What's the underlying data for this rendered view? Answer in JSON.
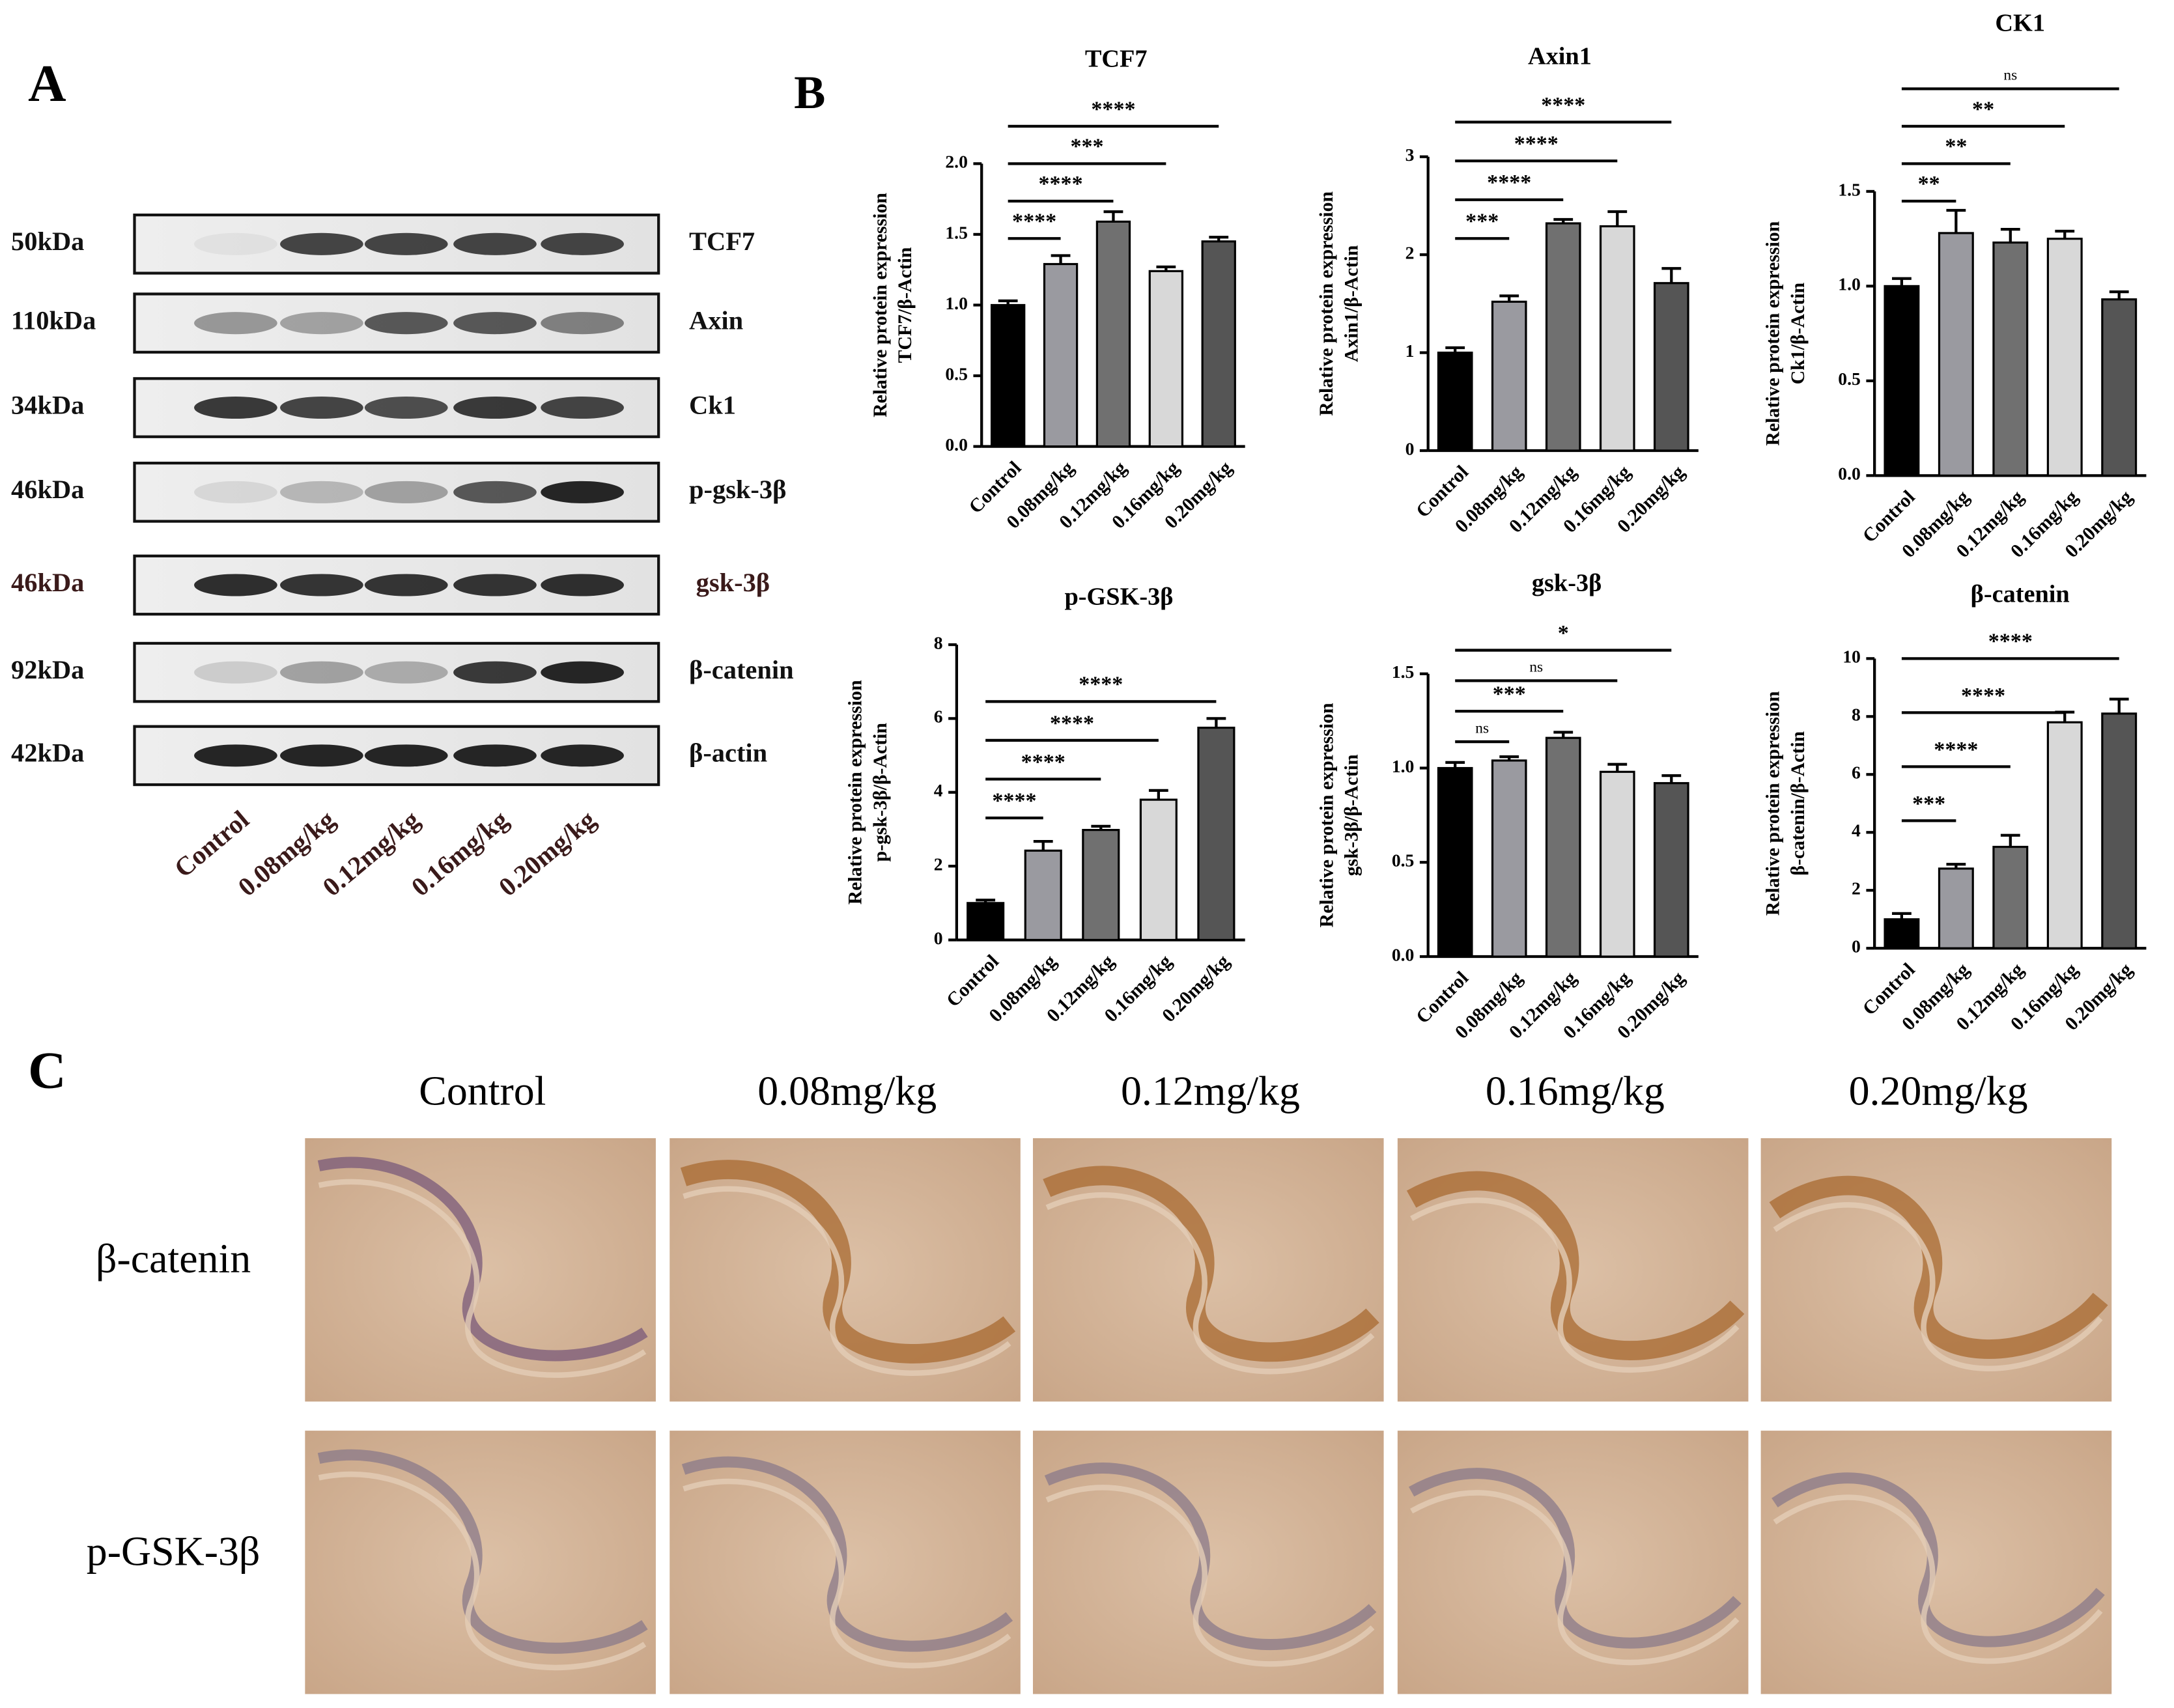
{
  "panel_labels": [
    "A",
    "B",
    "C"
  ],
  "blot": {
    "markers": [
      "50kDa",
      "110kDa",
      "34kDa",
      "46kDa",
      "46kDa",
      "92kDa",
      "42kDa"
    ],
    "proteins": [
      "TCF7",
      "Axin",
      "Ck1",
      "p-gsk-3β",
      "gsk-3β",
      "β-catenin",
      "β-actin"
    ],
    "groups": [
      "Control",
      "0.08mg/kg",
      "0.12mg/kg",
      "0.16mg/kg",
      "0.20mg/kg"
    ]
  },
  "chart_data": [
    {
      "type": "bar",
      "title": "TCF7",
      "ylabel": [
        "Relative protein expression",
        "TCF7/β-Actin"
      ],
      "categories": [
        "Control",
        "0.08mg/kg",
        "0.12mg/kg",
        "0.16mg/kg",
        "0.20mg/kg"
      ],
      "values": [
        1.0,
        1.29,
        1.59,
        1.24,
        1.45
      ],
      "errors": [
        0.03,
        0.06,
        0.07,
        0.03,
        0.03
      ],
      "colors": [
        "#000000",
        "#9a9aa0",
        "#707070",
        "#d8d8d8",
        "#555555"
      ],
      "ylim": [
        0,
        2
      ],
      "yticks": [
        {
          "value": 0,
          "label": "0.0"
        },
        0.5,
        {
          "value": 1,
          "label": "1.0"
        },
        1.5,
        {
          "value": 2,
          "label": "2.0"
        }
      ],
      "comparisons": [
        {
          "groups": [
            "Control",
            "0.08mg/kg"
          ],
          "label": "****"
        },
        {
          "groups": [
            "Control",
            "0.12mg/kg"
          ],
          "label": "****"
        },
        {
          "groups": [
            "Control",
            "0.16mg/kg"
          ],
          "label": "***"
        },
        {
          "groups": [
            "Control",
            "0.20mg/kg"
          ],
          "label": "****"
        }
      ]
    },
    {
      "type": "bar",
      "title": "Axin1",
      "ylabel": [
        "Relative protein expression",
        "Axin1/β-Actin"
      ],
      "categories": [
        "Control",
        "0.08mg/kg",
        "0.12mg/kg",
        "0.16mg/kg",
        "0.20mg/kg"
      ],
      "values": [
        1.0,
        1.52,
        2.32,
        2.29,
        1.71
      ],
      "errors": [
        0.05,
        0.06,
        0.04,
        0.15,
        0.15
      ],
      "colors": [
        "#000000",
        "#9a9aa0",
        "#707070",
        "#d8d8d8",
        "#555555"
      ],
      "ylim": [
        0,
        3
      ],
      "yticks": [
        0,
        1,
        2,
        3
      ],
      "comparisons": [
        {
          "groups": [
            "Control",
            "0.08mg/kg"
          ],
          "label": "***"
        },
        {
          "groups": [
            "Control",
            "0.12mg/kg"
          ],
          "label": "****"
        },
        {
          "groups": [
            "Control",
            "0.16mg/kg"
          ],
          "label": "****"
        },
        {
          "groups": [
            "Control",
            "0.20mg/kg"
          ],
          "label": "****"
        }
      ]
    },
    {
      "type": "bar",
      "title": "CK1",
      "ylabel": [
        "Relative protein expression",
        "Ck1/β-Actin"
      ],
      "categories": [
        "Control",
        "0.08mg/kg",
        "0.12mg/kg",
        "0.16mg/kg",
        "0.20mg/kg"
      ],
      "values": [
        1.0,
        1.28,
        1.23,
        1.25,
        0.93
      ],
      "errors": [
        0.04,
        0.12,
        0.07,
        0.04,
        0.04
      ],
      "colors": [
        "#000000",
        "#9a9aa0",
        "#707070",
        "#d8d8d8",
        "#555555"
      ],
      "ylim": [
        0,
        1.5
      ],
      "yticks": [
        {
          "value": 0,
          "label": "0.0"
        },
        0.5,
        {
          "value": 1,
          "label": "1.0"
        },
        1.5
      ],
      "comparisons": [
        {
          "groups": [
            "Control",
            "0.08mg/kg"
          ],
          "label": "**"
        },
        {
          "groups": [
            "Control",
            "0.12mg/kg"
          ],
          "label": "**"
        },
        {
          "groups": [
            "Control",
            "0.16mg/kg"
          ],
          "label": "**"
        },
        {
          "groups": [
            "Control",
            "0.20mg/kg"
          ],
          "label": "ns"
        }
      ]
    },
    {
      "type": "bar",
      "title": "p-GSK-3β",
      "ylabel": [
        "Relative protein expression",
        "p-gsk-3β/β-Actin"
      ],
      "categories": [
        "Control",
        "0.08mg/kg",
        "0.12mg/kg",
        "0.16mg/kg",
        "0.20mg/kg"
      ],
      "values": [
        1.0,
        2.42,
        2.98,
        3.8,
        5.75
      ],
      "errors": [
        0.08,
        0.25,
        0.1,
        0.25,
        0.25
      ],
      "colors": [
        "#000000",
        "#9a9aa0",
        "#707070",
        "#d8d8d8",
        "#555555"
      ],
      "ylim": [
        0,
        8
      ],
      "yticks": [
        0,
        2,
        4,
        6,
        8
      ],
      "comparisons": [
        {
          "groups": [
            "Control",
            "0.08mg/kg"
          ],
          "label": "****"
        },
        {
          "groups": [
            "Control",
            "0.12mg/kg"
          ],
          "label": "****"
        },
        {
          "groups": [
            "Control",
            "0.16mg/kg"
          ],
          "label": "****"
        },
        {
          "groups": [
            "Control",
            "0.20mg/kg"
          ],
          "label": "****"
        }
      ]
    },
    {
      "type": "bar",
      "title": "gsk-3β",
      "ylabel": [
        "Relative protein expression",
        "gsk-3β/β-Actin"
      ],
      "categories": [
        "Control",
        "0.08mg/kg",
        "0.12mg/kg",
        "0.16mg/kg",
        "0.20mg/kg"
      ],
      "values": [
        1.0,
        1.04,
        1.16,
        0.98,
        0.92
      ],
      "errors": [
        0.03,
        0.02,
        0.03,
        0.04,
        0.04
      ],
      "colors": [
        "#000000",
        "#9a9aa0",
        "#707070",
        "#d8d8d8",
        "#555555"
      ],
      "ylim": [
        0,
        1.5
      ],
      "yticks": [
        {
          "value": 0,
          "label": "0.0"
        },
        0.5,
        {
          "value": 1,
          "label": "1.0"
        },
        1.5
      ],
      "comparisons": [
        {
          "groups": [
            "Control",
            "0.08mg/kg"
          ],
          "label": "ns"
        },
        {
          "groups": [
            "Control",
            "0.12mg/kg"
          ],
          "label": "***"
        },
        {
          "groups": [
            "Control",
            "0.16mg/kg"
          ],
          "label": "ns"
        },
        {
          "groups": [
            "Control",
            "0.20mg/kg"
          ],
          "label": "*"
        }
      ]
    },
    {
      "type": "bar",
      "title": "β-catenin",
      "ylabel": [
        "Relative protein expression",
        "β-catenin/β-Actin"
      ],
      "categories": [
        "Control",
        "0.08mg/kg",
        "0.12mg/kg",
        "0.16mg/kg",
        "0.20mg/kg"
      ],
      "values": [
        1.0,
        2.75,
        3.5,
        7.8,
        8.1
      ],
      "errors": [
        0.2,
        0.15,
        0.4,
        0.35,
        0.5
      ],
      "colors": [
        "#000000",
        "#9a9aa0",
        "#707070",
        "#d8d8d8",
        "#555555"
      ],
      "ylim": [
        0,
        10
      ],
      "yticks": [
        0,
        2,
        4,
        6,
        8,
        10
      ],
      "comparisons": [
        {
          "groups": [
            "Control",
            "0.08mg/kg"
          ],
          "label": "***"
        },
        {
          "groups": [
            "Control",
            "0.12mg/kg"
          ],
          "label": "****"
        },
        {
          "groups": [
            "Control",
            "0.16mg/kg"
          ],
          "label": "****"
        },
        {
          "groups": [
            "Control",
            "0.20mg/kg"
          ],
          "label": "****"
        }
      ]
    }
  ],
  "ihc": {
    "groups": [
      "Control",
      "0.08mg/kg",
      "0.12mg/kg",
      "0.16mg/kg",
      "0.20mg/kg"
    ],
    "stains": [
      "β-catenin",
      "p-GSK-3β"
    ]
  }
}
